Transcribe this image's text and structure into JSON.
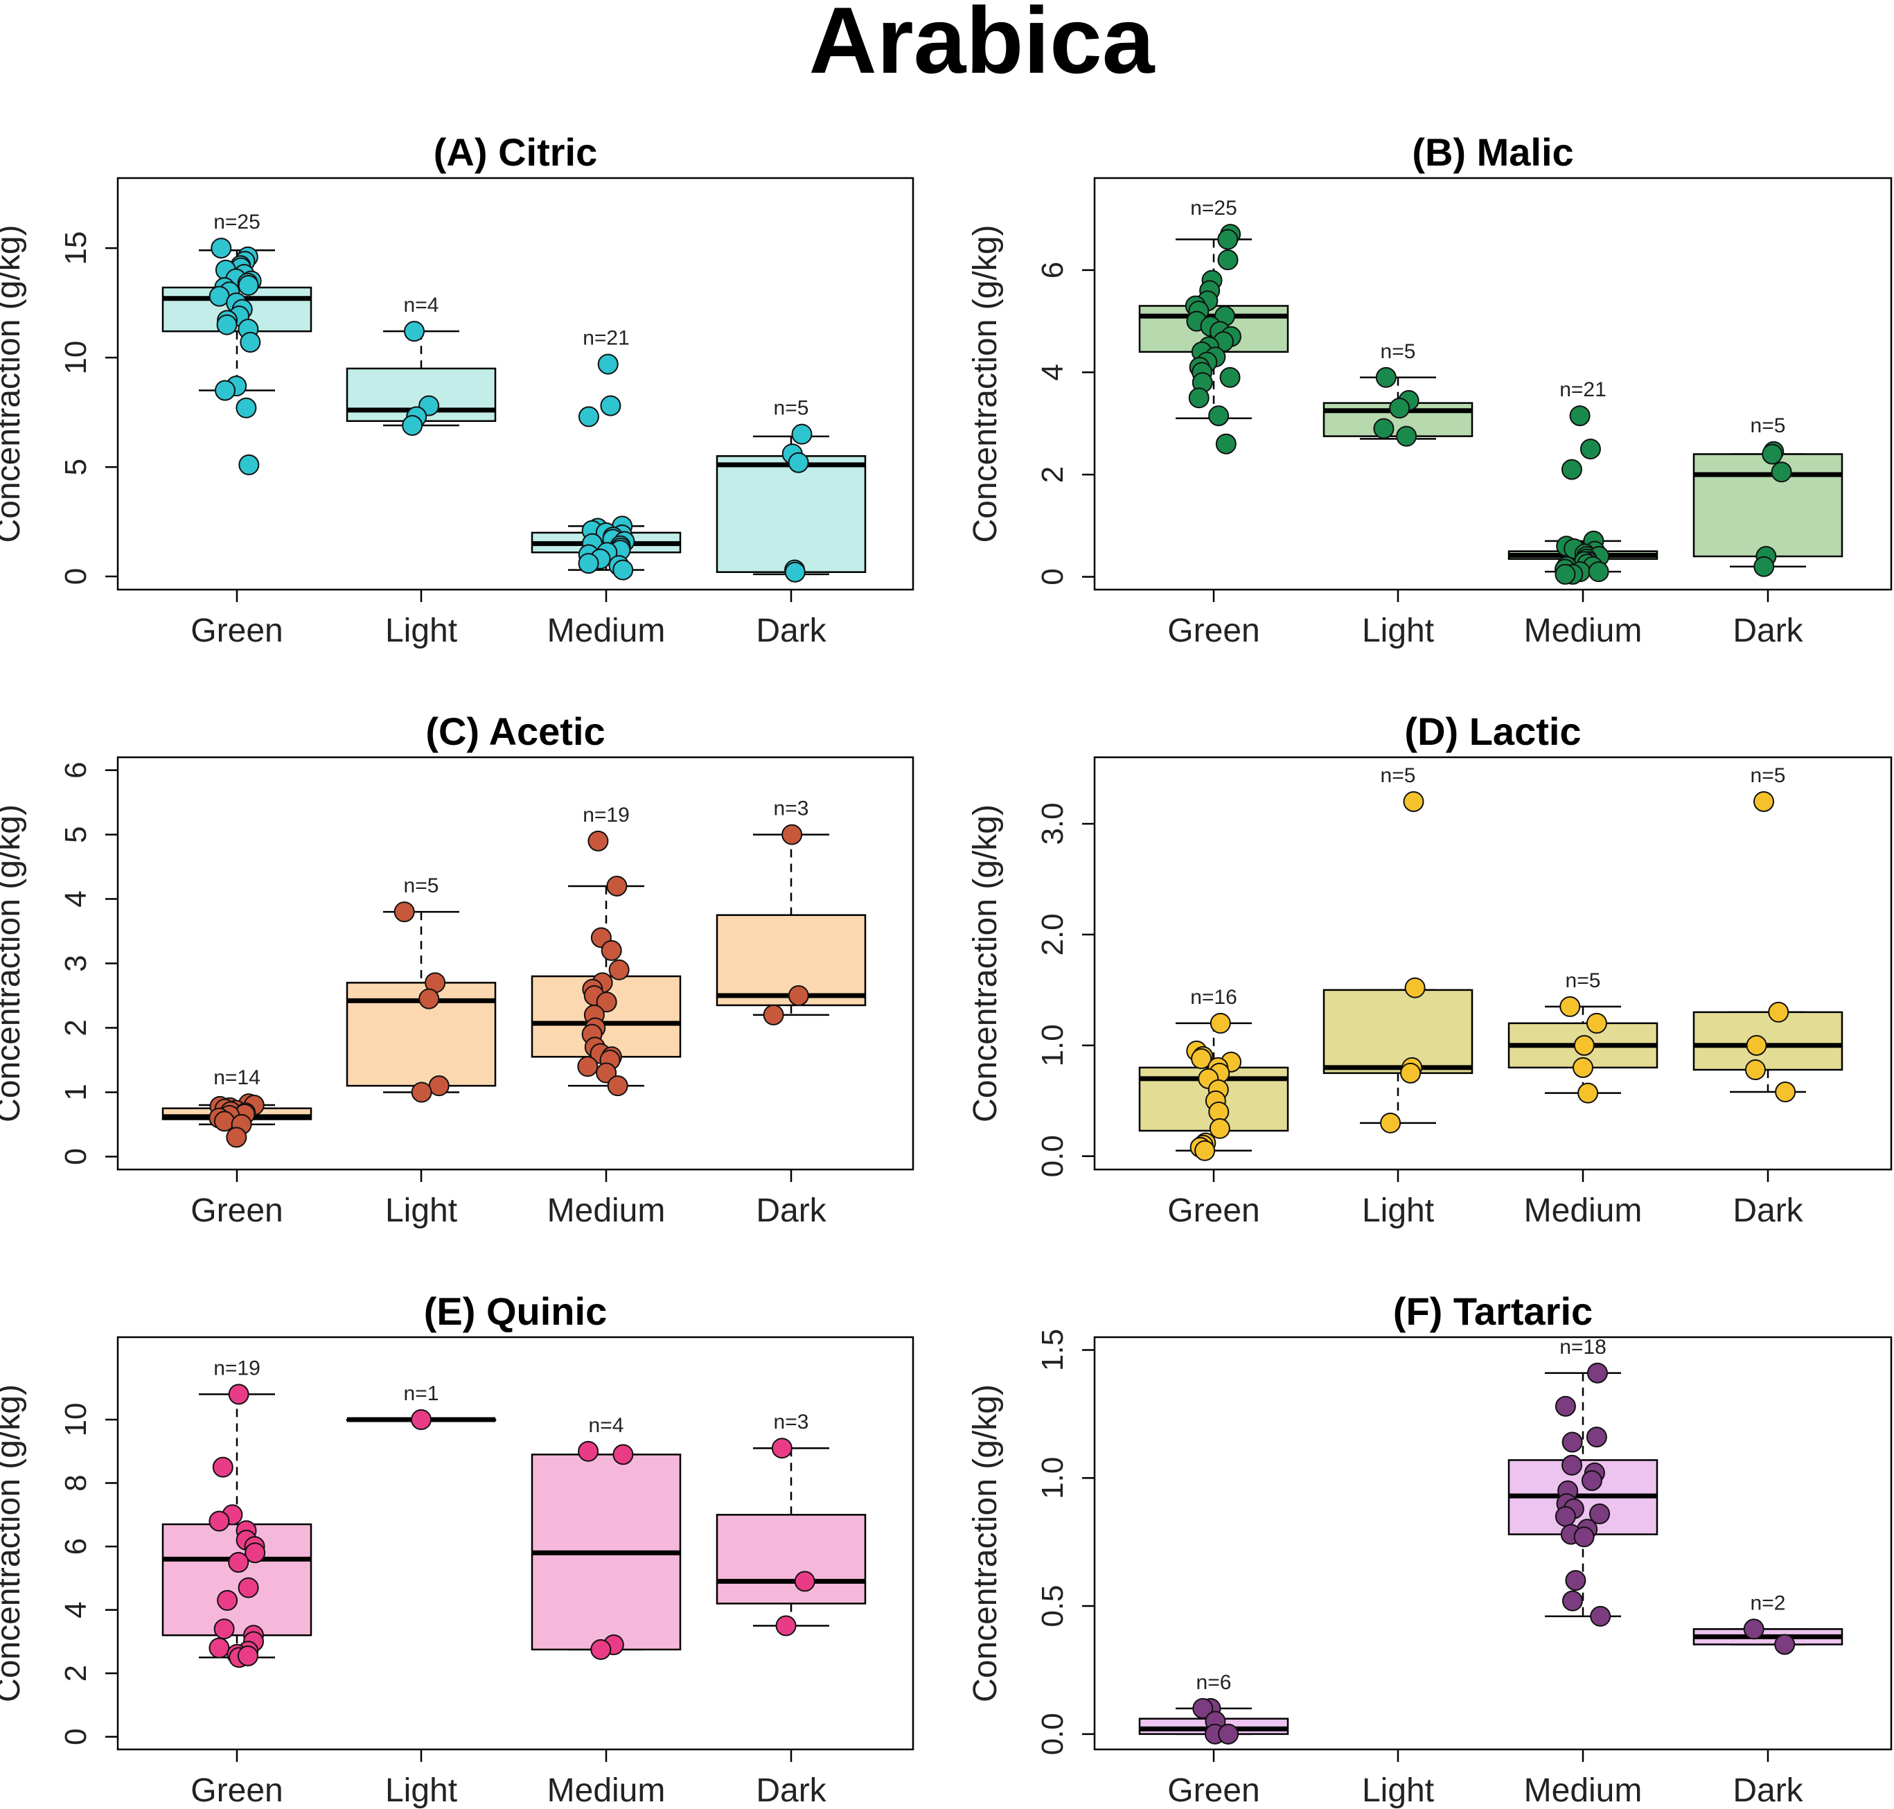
{
  "title": "Arabica",
  "chart_data": [
    {
      "id": "A",
      "type": "box",
      "title": "(A) Citric",
      "ylabel": "Concentraction (g/kg)",
      "categories": [
        "Green",
        "Light",
        "Medium",
        "Dark"
      ],
      "ylim": [
        -0.6,
        18.2
      ],
      "yticks": [
        0,
        5,
        10,
        15
      ],
      "tick_labels": [
        "0",
        "5",
        "10",
        "15"
      ],
      "colors": {
        "fill": "#c2ede8",
        "point": "#2ec4d0"
      },
      "groups": [
        {
          "category": "Green",
          "n_label": "n=25",
          "q1": 11.2,
          "median": 12.7,
          "q3": 13.2,
          "whisker_low": 8.5,
          "whisker_high": 14.9,
          "points": [
            15.0,
            14.6,
            14.4,
            14.2,
            14.1,
            14.0,
            13.8,
            13.6,
            13.5,
            13.4,
            13.3,
            13.2,
            13.0,
            12.8,
            12.5,
            12.2,
            11.9,
            11.7,
            11.5,
            11.3,
            10.7,
            8.7,
            8.5,
            7.7,
            5.1
          ]
        },
        {
          "category": "Light",
          "n_label": "n=4",
          "q1": 7.1,
          "median": 7.6,
          "q3": 9.5,
          "whisker_low": 6.9,
          "whisker_high": 11.2,
          "points": [
            11.2,
            7.8,
            7.3,
            6.9
          ]
        },
        {
          "category": "Medium",
          "n_label": "n=21",
          "q1": 1.1,
          "median": 1.5,
          "q3": 2.0,
          "whisker_low": 0.3,
          "whisker_high": 2.3,
          "points": [
            9.7,
            7.8,
            7.3,
            2.3,
            2.2,
            2.1,
            2.0,
            1.9,
            1.8,
            1.7,
            1.6,
            1.5,
            1.4,
            1.3,
            1.2,
            1.1,
            1.0,
            0.8,
            0.6,
            0.5,
            0.3
          ]
        },
        {
          "category": "Dark",
          "n_label": "n=5",
          "q1": 0.2,
          "median": 5.1,
          "q3": 5.5,
          "whisker_low": 0.1,
          "whisker_high": 6.4,
          "points": [
            6.5,
            5.6,
            5.2,
            0.3,
            0.2
          ]
        }
      ]
    },
    {
      "id": "B",
      "type": "box",
      "title": "(B) Malic",
      "ylabel": "Concentraction (g/kg)",
      "categories": [
        "Green",
        "Light",
        "Medium",
        "Dark"
      ],
      "ylim": [
        -0.25,
        7.8
      ],
      "yticks": [
        0,
        2,
        4,
        6
      ],
      "tick_labels": [
        "0",
        "2",
        "4",
        "6"
      ],
      "colors": {
        "fill": "#b6d9ae",
        "point": "#1a8a4c"
      },
      "groups": [
        {
          "category": "Green",
          "n_label": "n=25",
          "q1": 4.4,
          "median": 5.1,
          "q3": 5.3,
          "whisker_low": 3.1,
          "whisker_high": 6.6,
          "points": [
            6.7,
            6.6,
            6.2,
            5.8,
            5.6,
            5.4,
            5.3,
            5.2,
            5.1,
            5.0,
            4.9,
            4.8,
            4.7,
            4.6,
            4.5,
            4.4,
            4.3,
            4.2,
            4.1,
            4.0,
            3.9,
            3.8,
            3.5,
            3.15,
            2.6
          ]
        },
        {
          "category": "Light",
          "n_label": "n=5",
          "q1": 2.75,
          "median": 3.25,
          "q3": 3.4,
          "whisker_low": 2.7,
          "whisker_high": 3.9,
          "points": [
            3.9,
            3.45,
            3.3,
            2.9,
            2.75
          ]
        },
        {
          "category": "Medium",
          "n_label": "n=21",
          "q1": 0.35,
          "median": 0.42,
          "q3": 0.5,
          "whisker_low": 0.1,
          "whisker_high": 0.7,
          "points": [
            3.15,
            2.5,
            2.1,
            0.7,
            0.6,
            0.55,
            0.5,
            0.45,
            0.4,
            0.4,
            0.35,
            0.3,
            0.3,
            0.25,
            0.2,
            0.2,
            0.15,
            0.1,
            0.1,
            0.05,
            0.05
          ]
        },
        {
          "category": "Dark",
          "n_label": "n=5",
          "q1": 0.4,
          "median": 2.0,
          "q3": 2.4,
          "whisker_low": 0.2,
          "whisker_high": 2.4,
          "points": [
            2.45,
            2.4,
            2.05,
            0.4,
            0.2
          ]
        }
      ]
    },
    {
      "id": "C",
      "type": "box",
      "title": "(C) Acetic",
      "ylabel": "Concentraction (g/kg)",
      "categories": [
        "Green",
        "Light",
        "Medium",
        "Dark"
      ],
      "ylim": [
        -0.2,
        6.2
      ],
      "yticks": [
        0,
        1,
        2,
        3,
        4,
        5,
        6
      ],
      "tick_labels": [
        "0",
        "1",
        "2",
        "3",
        "4",
        "5",
        "6"
      ],
      "colors": {
        "fill": "#fcd8b0",
        "point": "#c8583c"
      },
      "groups": [
        {
          "category": "Green",
          "n_label": "n=14",
          "q1": 0.58,
          "median": 0.62,
          "q3": 0.75,
          "whisker_low": 0.5,
          "whisker_high": 0.8,
          "points": [
            0.82,
            0.8,
            0.78,
            0.76,
            0.74,
            0.72,
            0.7,
            0.68,
            0.66,
            0.64,
            0.6,
            0.55,
            0.5,
            0.3
          ]
        },
        {
          "category": "Light",
          "n_label": "n=5",
          "q1": 1.1,
          "median": 2.42,
          "q3": 2.7,
          "whisker_low": 1.0,
          "whisker_high": 3.8,
          "points": [
            3.8,
            2.7,
            2.45,
            1.1,
            1.0
          ]
        },
        {
          "category": "Medium",
          "n_label": "n=19",
          "q1": 1.55,
          "median": 2.07,
          "q3": 2.8,
          "whisker_low": 1.1,
          "whisker_high": 4.2,
          "points": [
            4.9,
            4.2,
            3.4,
            3.2,
            2.9,
            2.7,
            2.6,
            2.5,
            2.4,
            2.2,
            2.0,
            1.9,
            1.7,
            1.6,
            1.55,
            1.5,
            1.4,
            1.3,
            1.1
          ]
        },
        {
          "category": "Dark",
          "n_label": "n=3",
          "q1": 2.35,
          "median": 2.5,
          "q3": 3.75,
          "whisker_low": 2.2,
          "whisker_high": 5.0,
          "points": [
            5.0,
            2.5,
            2.2
          ]
        }
      ]
    },
    {
      "id": "D",
      "type": "box",
      "title": "(D) Lactic",
      "ylabel": "Concentraction (g/kg)",
      "categories": [
        "Green",
        "Light",
        "Medium",
        "Dark"
      ],
      "ylim": [
        -0.12,
        3.6
      ],
      "yticks": [
        0,
        1,
        2,
        3
      ],
      "tick_labels": [
        "0.0",
        "1.0",
        "2.0",
        "3.0"
      ],
      "colors": {
        "fill": "#e3dc94",
        "point": "#f6c22c"
      },
      "groups": [
        {
          "category": "Green",
          "n_label": "n=16",
          "q1": 0.23,
          "median": 0.7,
          "q3": 0.8,
          "whisker_low": 0.05,
          "whisker_high": 1.2,
          "points": [
            1.2,
            0.95,
            0.9,
            0.88,
            0.85,
            0.8,
            0.75,
            0.7,
            0.6,
            0.5,
            0.4,
            0.25,
            0.12,
            0.1,
            0.08,
            0.05
          ]
        },
        {
          "category": "Light",
          "n_label": "n=5",
          "q1": 0.75,
          "median": 0.8,
          "q3": 1.5,
          "whisker_low": 0.3,
          "whisker_high": 1.5,
          "points": [
            3.2,
            1.52,
            0.8,
            0.75,
            0.3
          ]
        },
        {
          "category": "Medium",
          "n_label": "n=5",
          "q1": 0.8,
          "median": 1.0,
          "q3": 1.2,
          "whisker_low": 0.57,
          "whisker_high": 1.35,
          "points": [
            1.35,
            1.2,
            1.0,
            0.8,
            0.57
          ]
        },
        {
          "category": "Dark",
          "n_label": "n=5",
          "q1": 0.78,
          "median": 1.0,
          "q3": 1.3,
          "whisker_low": 0.58,
          "whisker_high": 1.3,
          "points": [
            3.2,
            1.3,
            1.0,
            0.78,
            0.58
          ]
        }
      ]
    },
    {
      "id": "E",
      "type": "box",
      "title": "(E) Quinic",
      "ylabel": "Concentraction (g/kg)",
      "categories": [
        "Green",
        "Light",
        "Medium",
        "Dark"
      ],
      "ylim": [
        -0.4,
        12.6
      ],
      "yticks": [
        0,
        2,
        4,
        6,
        8,
        10
      ],
      "tick_labels": [
        "0",
        "2",
        "4",
        "6",
        "8",
        "10"
      ],
      "colors": {
        "fill": "#f6b8da",
        "point": "#ea3c86"
      },
      "groups": [
        {
          "category": "Green",
          "n_label": "n=19",
          "q1": 3.2,
          "median": 5.6,
          "q3": 6.7,
          "whisker_low": 2.5,
          "whisker_high": 10.8,
          "points": [
            10.8,
            8.5,
            7.0,
            6.8,
            6.5,
            6.2,
            6.0,
            5.8,
            5.5,
            4.7,
            4.3,
            3.4,
            3.2,
            3.0,
            2.8,
            2.7,
            2.6,
            2.5,
            2.55
          ]
        },
        {
          "category": "Light",
          "n_label": "n=1",
          "q1": 10.0,
          "median": 10.0,
          "q3": 10.0,
          "whisker_low": 10.0,
          "whisker_high": 10.0,
          "points": [
            10.0
          ]
        },
        {
          "category": "Medium",
          "n_label": "n=4",
          "q1": 2.75,
          "median": 5.8,
          "q3": 8.9,
          "whisker_low": 2.75,
          "whisker_high": 8.9,
          "points": [
            9.0,
            8.9,
            2.9,
            2.75
          ]
        },
        {
          "category": "Dark",
          "n_label": "n=3",
          "q1": 4.2,
          "median": 4.9,
          "q3": 7.0,
          "whisker_low": 3.5,
          "whisker_high": 9.1,
          "points": [
            9.1,
            4.9,
            3.5
          ]
        }
      ]
    },
    {
      "id": "F",
      "type": "box",
      "title": "(F) Tartaric",
      "ylabel": "Concentraction (g/kg)",
      "categories": [
        "Green",
        "Light",
        "Medium",
        "Dark"
      ],
      "ylim": [
        -0.06,
        1.55
      ],
      "yticks": [
        0,
        0.5,
        1.0,
        1.5
      ],
      "tick_labels": [
        "0.0",
        "0.5",
        "1.0",
        "1.5"
      ],
      "colors": {
        "fill": "#edc3ef",
        "point": "#7c3c80"
      },
      "groups": [
        {
          "category": "Green",
          "n_label": "n=6",
          "q1": 0.0,
          "median": 0.02,
          "q3": 0.06,
          "whisker_low": 0.0,
          "whisker_high": 0.1,
          "points": [
            0.1,
            0.1,
            0.05,
            0.0,
            0.0,
            0.0
          ]
        },
        {
          "category": "Light",
          "n_label": "",
          "points": []
        },
        {
          "category": "Medium",
          "n_label": "n=18",
          "q1": 0.78,
          "median": 0.93,
          "q3": 1.07,
          "whisker_low": 0.46,
          "whisker_high": 1.41,
          "points": [
            1.41,
            1.28,
            1.16,
            1.14,
            1.05,
            1.02,
            0.95,
            0.9,
            0.88,
            0.86,
            0.85,
            0.8,
            0.78,
            0.77,
            0.6,
            0.52,
            0.46,
            0.99
          ]
        },
        {
          "category": "Dark",
          "n_label": "n=2",
          "q1": 0.35,
          "median": 0.38,
          "q3": 0.41,
          "whisker_low": 0.35,
          "whisker_high": 0.41,
          "points": [
            0.41,
            0.35
          ]
        }
      ]
    }
  ]
}
